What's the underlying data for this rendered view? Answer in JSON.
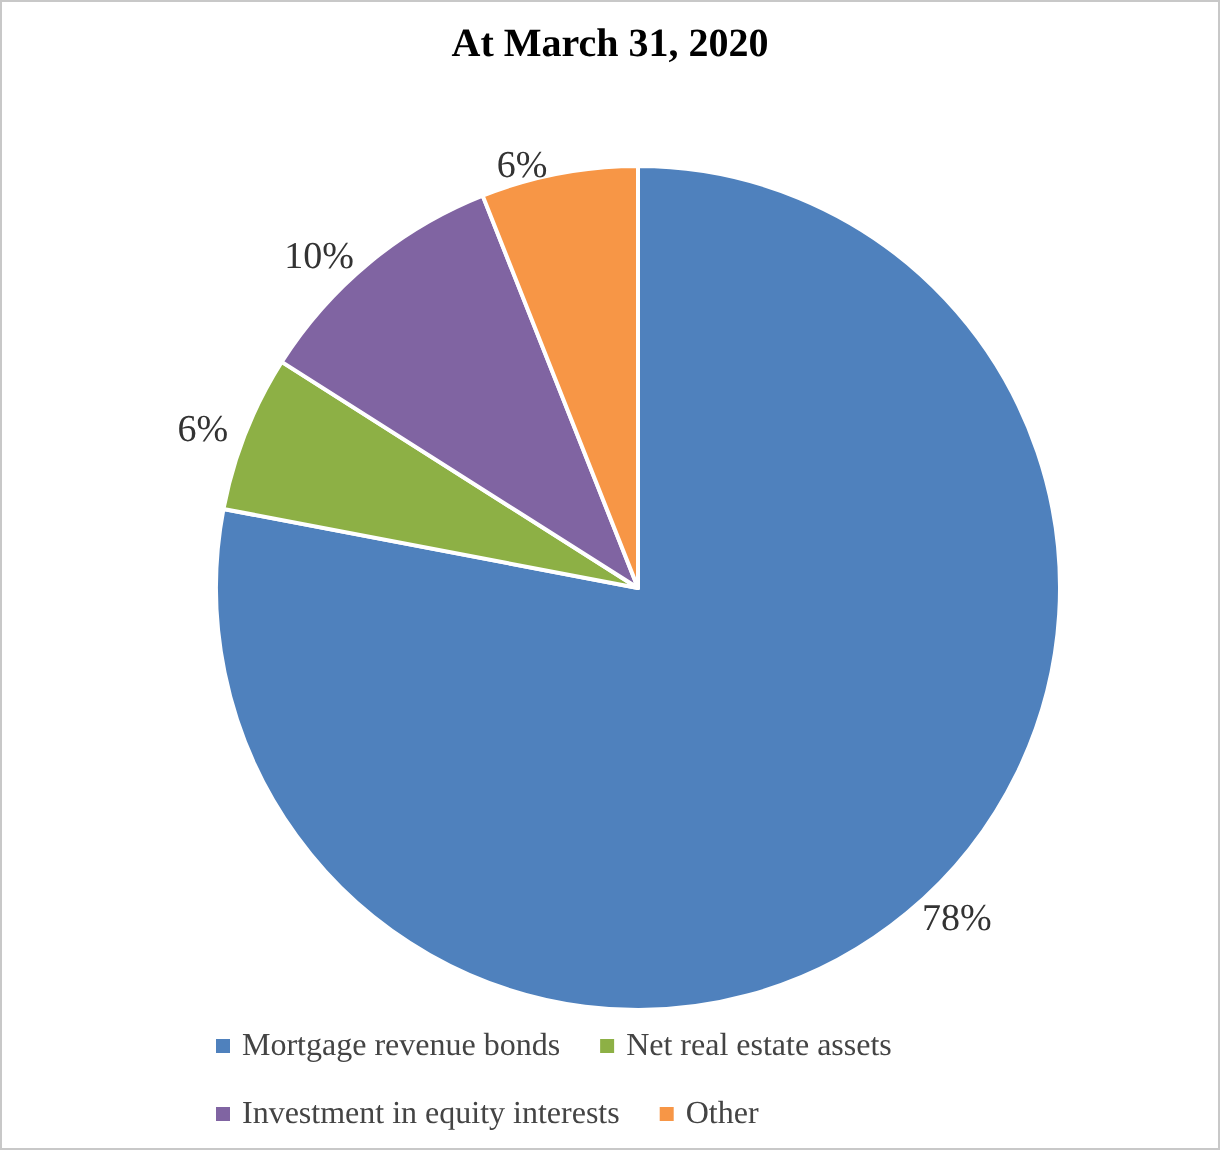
{
  "chart_data": {
    "type": "pie",
    "title": "At March 31, 2020",
    "categories": [
      "Mortgage revenue bonds",
      "Net real estate assets",
      "Investment in equity interests",
      "Other"
    ],
    "values": [
      78,
      6,
      10,
      6
    ],
    "colors": [
      "#4f81bd",
      "#8db045",
      "#8064a2",
      "#f79646"
    ],
    "value_labels": [
      "78%",
      "6%",
      "10%",
      "6%"
    ],
    "legend": "bottom"
  }
}
